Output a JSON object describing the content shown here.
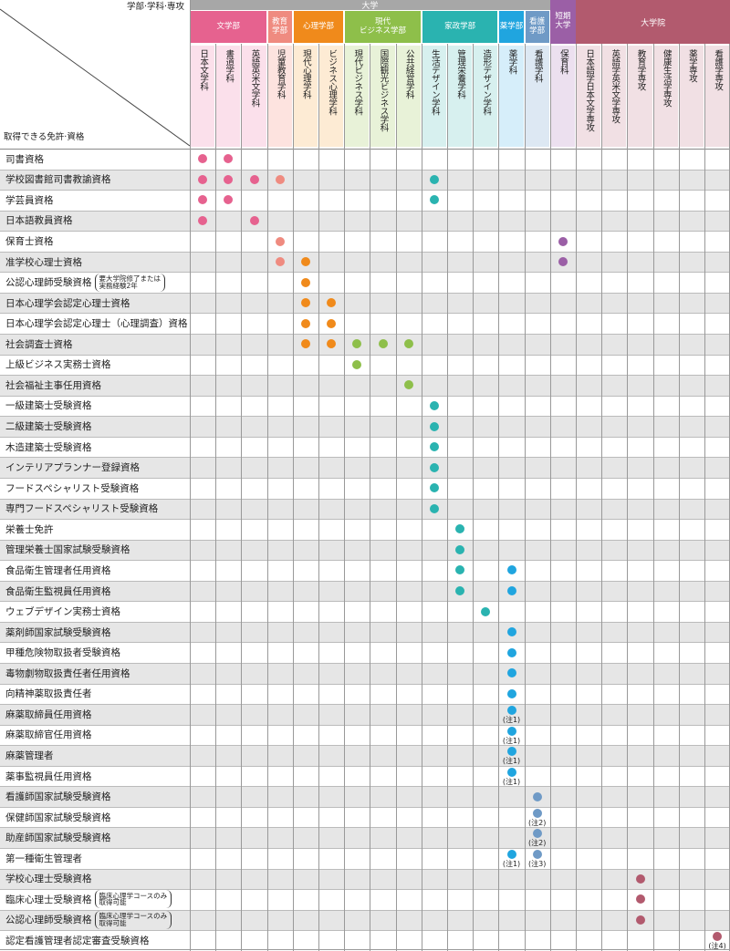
{
  "corner": {
    "top_label": "学部·学科·専攻",
    "bottom_label": "取得できる免許·資格"
  },
  "colors": {
    "univ_band": "#a3a3a3",
    "grad_band": "#b0596f",
    "row_alt": "#e6e6e6"
  },
  "top_groups": [
    {
      "label": "大学",
      "start": 0,
      "span": 14,
      "color": "#a7a7a7"
    },
    {
      "label": "短期大学",
      "start": 14,
      "span": 1,
      "color": "#9b5fa6"
    },
    {
      "label": "大学院",
      "start": 15,
      "span": 6,
      "color": "#b25a6e"
    }
  ],
  "faculties": [
    {
      "label": "文学部",
      "start": 0,
      "span": 3,
      "color": "#e6628f",
      "light": "#fbe0eb"
    },
    {
      "label": "教育\n学部",
      "start": 3,
      "span": 1,
      "color": "#ef8b80",
      "light": "#fde3df"
    },
    {
      "label": "心理学部",
      "start": 4,
      "span": 2,
      "color": "#f08a1b",
      "light": "#fdebd4"
    },
    {
      "label": "現代\nビジネス学部",
      "start": 6,
      "span": 3,
      "color": "#8ebf4a",
      "light": "#e8f2d8"
    },
    {
      "label": "家政学部",
      "start": 9,
      "span": 3,
      "color": "#2ab3b0",
      "light": "#d7f0ef"
    },
    {
      "label": "薬学部",
      "start": 12,
      "span": 1,
      "color": "#20a5df",
      "light": "#d6eefa"
    },
    {
      "label": "看護\n学部",
      "start": 13,
      "span": 1,
      "color": "#6f9ac6",
      "light": "#dde8f3"
    },
    {
      "label": "",
      "start": 14,
      "span": 1,
      "color": "#9b5fa6",
      "light": "#ece0ef"
    },
    {
      "label": "",
      "start": 15,
      "span": 6,
      "color": "#b25a6e",
      "light": "#f1e0e4"
    }
  ],
  "departments": [
    "日本文学科",
    "書道学科",
    "英語英米文学科",
    "児童教育学科",
    "現代心理学科",
    "ビジネス心理学科",
    "現代ビジネス学科",
    "国際観光ビジネス学科",
    "公共経営学科",
    "生活デザイン学科",
    "管理栄養学科",
    "造形デザイン学科",
    "薬学科",
    "看護学科",
    "保育科",
    "日本語学日本文学専攻",
    "英語学英米文学専攻",
    "教育学専攻",
    "健康生活学専攻",
    "薬学専攻",
    "看護学専攻"
  ],
  "rows": [
    {
      "label": "司書資格",
      "marks": [
        [
          0,
          ""
        ],
        [
          1,
          ""
        ]
      ]
    },
    {
      "label": "学校図書館司書教諭資格",
      "marks": [
        [
          0,
          ""
        ],
        [
          1,
          ""
        ],
        [
          2,
          ""
        ],
        [
          3,
          ""
        ],
        [
          9,
          ""
        ]
      ]
    },
    {
      "label": "学芸員資格",
      "marks": [
        [
          0,
          ""
        ],
        [
          1,
          ""
        ],
        [
          9,
          ""
        ]
      ]
    },
    {
      "label": "日本語教員資格",
      "marks": [
        [
          0,
          ""
        ],
        [
          2,
          ""
        ]
      ]
    },
    {
      "label": "保育士資格",
      "marks": [
        [
          3,
          ""
        ],
        [
          14,
          ""
        ]
      ]
    },
    {
      "label": "准学校心理士資格",
      "marks": [
        [
          3,
          ""
        ],
        [
          4,
          ""
        ],
        [
          14,
          ""
        ]
      ]
    },
    {
      "label": "公認心理師受験資格",
      "sub": [
        "要大学院修了または",
        "実務経験2年"
      ],
      "marks": [
        [
          4,
          ""
        ]
      ]
    },
    {
      "label": "日本心理学会認定心理士資格",
      "marks": [
        [
          4,
          ""
        ],
        [
          5,
          ""
        ]
      ]
    },
    {
      "label": "日本心理学会認定心理士（心理調査）資格",
      "marks": [
        [
          4,
          ""
        ],
        [
          5,
          ""
        ]
      ]
    },
    {
      "label": "社会調査士資格",
      "marks": [
        [
          4,
          ""
        ],
        [
          5,
          ""
        ],
        [
          6,
          ""
        ],
        [
          7,
          ""
        ],
        [
          8,
          ""
        ]
      ]
    },
    {
      "label": "上級ビジネス実務士資格",
      "marks": [
        [
          6,
          ""
        ]
      ]
    },
    {
      "label": "社会福祉主事任用資格",
      "marks": [
        [
          8,
          ""
        ]
      ]
    },
    {
      "label": "一級建築士受験資格",
      "marks": [
        [
          9,
          ""
        ]
      ]
    },
    {
      "label": "二級建築士受験資格",
      "marks": [
        [
          9,
          ""
        ]
      ]
    },
    {
      "label": "木造建築士受験資格",
      "marks": [
        [
          9,
          ""
        ]
      ]
    },
    {
      "label": "インテリアプランナー登録資格",
      "marks": [
        [
          9,
          ""
        ]
      ]
    },
    {
      "label": "フードスペシャリスト受験資格",
      "marks": [
        [
          9,
          ""
        ]
      ]
    },
    {
      "label": "専門フードスペシャリスト受験資格",
      "marks": [
        [
          9,
          ""
        ]
      ]
    },
    {
      "label": "栄養士免許",
      "marks": [
        [
          10,
          ""
        ]
      ]
    },
    {
      "label": "管理栄養士国家試験受験資格",
      "marks": [
        [
          10,
          ""
        ]
      ]
    },
    {
      "label": "食品衛生管理者任用資格",
      "marks": [
        [
          10,
          ""
        ],
        [
          12,
          ""
        ]
      ]
    },
    {
      "label": "食品衛生監視員任用資格",
      "marks": [
        [
          10,
          ""
        ],
        [
          12,
          ""
        ]
      ]
    },
    {
      "label": "ウェブデザイン実務士資格",
      "marks": [
        [
          11,
          ""
        ]
      ]
    },
    {
      "label": "薬剤師国家試験受験資格",
      "marks": [
        [
          12,
          ""
        ]
      ]
    },
    {
      "label": "甲種危険物取扱者受験資格",
      "marks": [
        [
          12,
          ""
        ]
      ]
    },
    {
      "label": "毒物劇物取扱責任者任用資格",
      "marks": [
        [
          12,
          ""
        ]
      ]
    },
    {
      "label": "向精神薬取扱責任者",
      "marks": [
        [
          12,
          ""
        ]
      ]
    },
    {
      "label": "麻薬取締員任用資格",
      "marks": [
        [
          12,
          "(注1)"
        ]
      ]
    },
    {
      "label": "麻薬取締官任用資格",
      "marks": [
        [
          12,
          "(注1)"
        ]
      ]
    },
    {
      "label": "麻薬管理者",
      "marks": [
        [
          12,
          "(注1)"
        ]
      ]
    },
    {
      "label": "薬事監視員任用資格",
      "marks": [
        [
          12,
          "(注1)"
        ]
      ]
    },
    {
      "label": "看護師国家試験受験資格",
      "marks": [
        [
          13,
          ""
        ]
      ]
    },
    {
      "label": "保健師国家試験受験資格",
      "marks": [
        [
          13,
          "(注2)"
        ]
      ]
    },
    {
      "label": "助産師国家試験受験資格",
      "marks": [
        [
          13,
          "(注2)"
        ]
      ]
    },
    {
      "label": "第一種衛生管理者",
      "marks": [
        [
          12,
          "(注1)"
        ],
        [
          13,
          "(注3)"
        ]
      ]
    },
    {
      "label": "学校心理士受験資格",
      "marks": [
        [
          17,
          ""
        ]
      ]
    },
    {
      "label": "臨床心理士受験資格",
      "sub": [
        "臨床心理学コースのみ",
        "取得可能"
      ],
      "marks": [
        [
          17,
          ""
        ]
      ]
    },
    {
      "label": "公認心理師受験資格",
      "sub": [
        "臨床心理学コースのみ",
        "取得可能"
      ],
      "marks": [
        [
          17,
          ""
        ]
      ]
    },
    {
      "label": "認定看護管理者認定審査受験資格",
      "marks": [
        [
          20,
          "(注4)"
        ]
      ]
    }
  ]
}
